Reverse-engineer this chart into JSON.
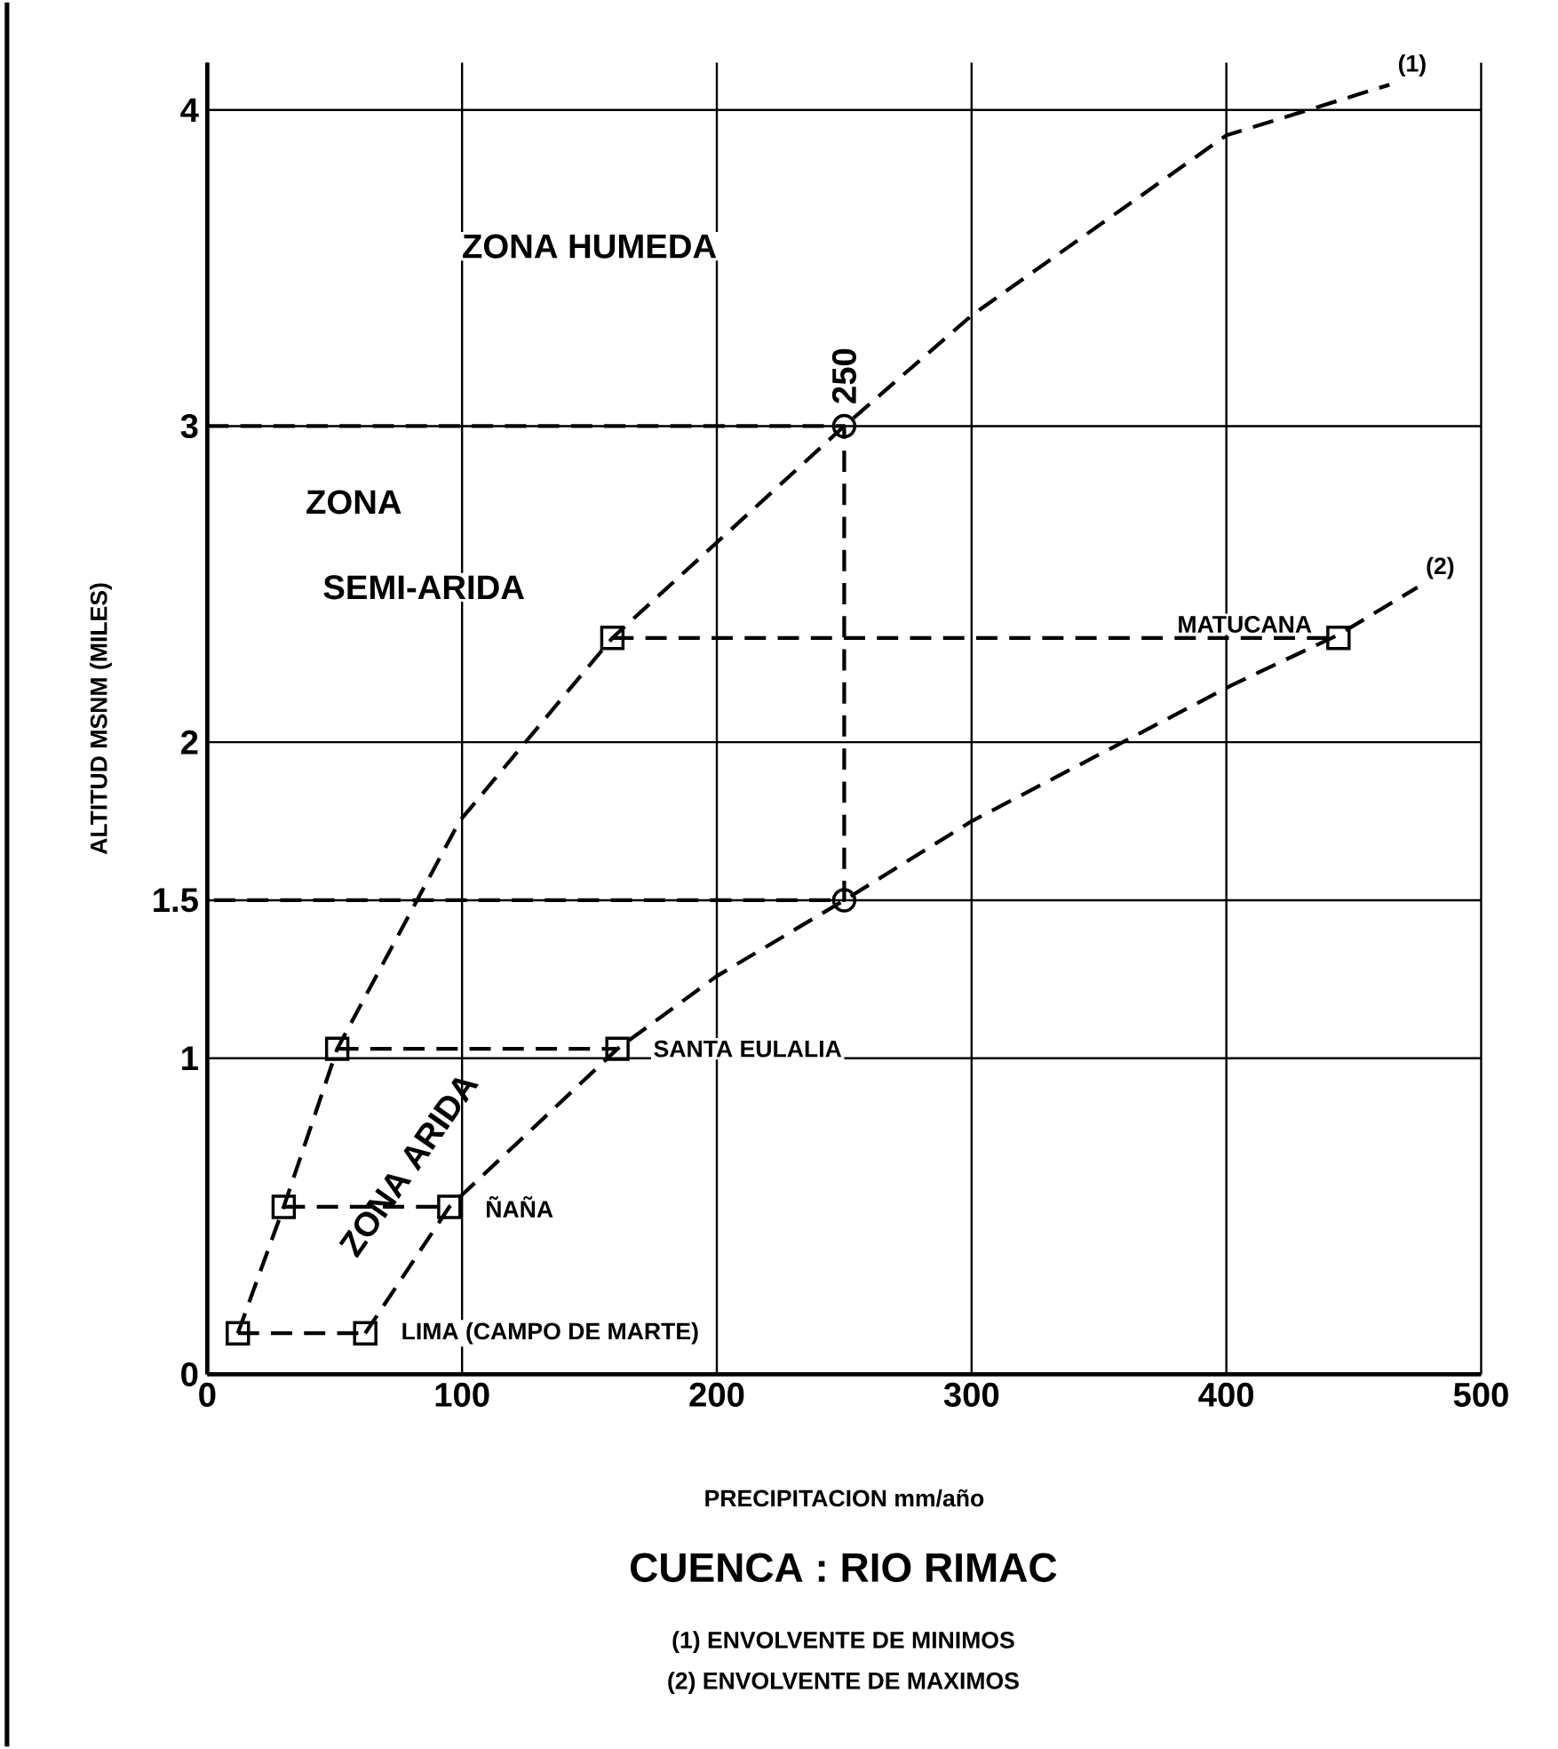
{
  "chart_data": {
    "type": "line",
    "title": "CUENCA : RIO RIMAC",
    "xlabel": "PRECIPITACION mm/año",
    "ylabel": "ALTITUD MSNM (MILES)",
    "xlim": [
      0,
      500
    ],
    "ylim": [
      0,
      4.15
    ],
    "xticks": [
      0,
      100,
      200,
      300,
      400,
      500
    ],
    "yticks": [
      0,
      1,
      1.5,
      2,
      3,
      4
    ],
    "grid": true,
    "series": [
      {
        "name": "(1)",
        "line_style": "dashed",
        "marker": "none",
        "color": "#000000",
        "x": [
          12,
          30,
          51,
          99,
          159,
          250,
          300,
          400,
          464
        ],
        "values": [
          0.13,
          0.53,
          1.03,
          1.75,
          2.33,
          3,
          3.35,
          3.92,
          4.08
        ]
      },
      {
        "name": "(2)",
        "line_style": "dashed",
        "marker": "none",
        "color": "#000000",
        "x": [
          62,
          95,
          161,
          200,
          250,
          300,
          402,
          444,
          475
        ],
        "values": [
          0.13,
          0.53,
          1.03,
          1.26,
          1.5,
          1.75,
          2.18,
          2.34,
          2.49
        ]
      },
      {
        "line_style": "dashed",
        "marker": "none",
        "color": "#000000",
        "x": [
          12,
          62,
          null,
          30,
          95,
          null,
          51,
          161,
          null,
          159,
          444
        ],
        "values": [
          0.13,
          0.13,
          null,
          0.53,
          0.53,
          null,
          1.03,
          1.03,
          null,
          2.33,
          2.33
        ]
      },
      {
        "line_style": "dashed",
        "marker": "none",
        "color": "#000000",
        "x": [
          0,
          250,
          250,
          0
        ],
        "values": [
          3,
          3,
          1.5,
          1.5
        ]
      },
      {
        "type": "scatter",
        "marker": "square",
        "color": "#000000",
        "x": [
          12,
          30,
          51,
          159,
          62,
          95,
          161,
          444
        ],
        "values": [
          0.13,
          0.53,
          1.03,
          2.33,
          0.13,
          0.53,
          1.03,
          2.33
        ]
      },
      {
        "type": "scatter",
        "marker": "circle",
        "color": "#000000",
        "x": [
          250,
          250
        ],
        "values": [
          3,
          1.5
        ]
      }
    ],
    "annotations": [
      "ZONA HUMEDA",
      "ZONA",
      "SEMI-ARIDA",
      "ZONA ARIDA",
      {
        "text": "250",
        "x": 250,
        "y": 3
      },
      {
        "text": "MATUCANA",
        "x": 444,
        "y": 2.33
      },
      {
        "text": "SANTA EULALIA",
        "x": 161,
        "y": 1.03
      },
      {
        "text": "ÑAÑA",
        "x": 95,
        "y": 0.53
      },
      {
        "text": "LIMA (CAMPO DE MARTE)",
        "x": 62,
        "y": 0.13
      },
      "(1) ENVOLVENTE DE MINIMOS",
      "(2) ENVOLVENTE DE MAXIMOS"
    ]
  }
}
